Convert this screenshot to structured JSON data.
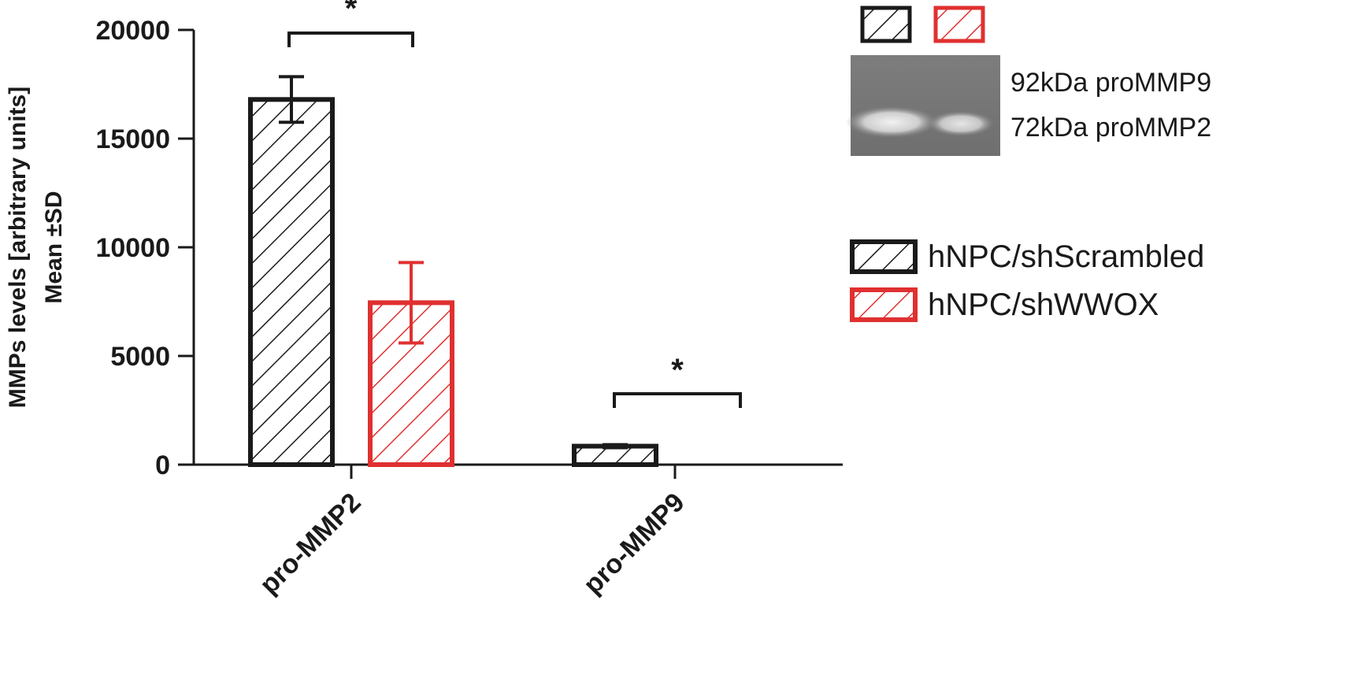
{
  "chart_data": {
    "type": "bar",
    "categories": [
      "pro-MMP2",
      "pro-MMP9"
    ],
    "ylabel_line1": "MMPs levels [arbitrary units]",
    "ylabel_line2": "Mean ±SD",
    "ylim": [
      0,
      20000
    ],
    "yticks": [
      0,
      5000,
      10000,
      15000,
      20000
    ],
    "series": [
      {
        "name": "hNPC/shScrambled",
        "color": "#1a1a1a",
        "values": [
          16800,
          850
        ],
        "errors": [
          1050,
          70
        ]
      },
      {
        "name": "hNPC/shWWOX",
        "color": "#e03030",
        "values": [
          7450,
          0
        ],
        "errors": [
          1850,
          0
        ]
      }
    ],
    "significance": [
      {
        "category": "pro-MMP2",
        "label": "*"
      },
      {
        "category": "pro-MMP9",
        "label": "*"
      }
    ],
    "legend_position": "right",
    "grid": false
  },
  "gel": {
    "band_upper_label": "92kDa proMMP9",
    "band_lower_label": "72kDa proMMP2"
  }
}
